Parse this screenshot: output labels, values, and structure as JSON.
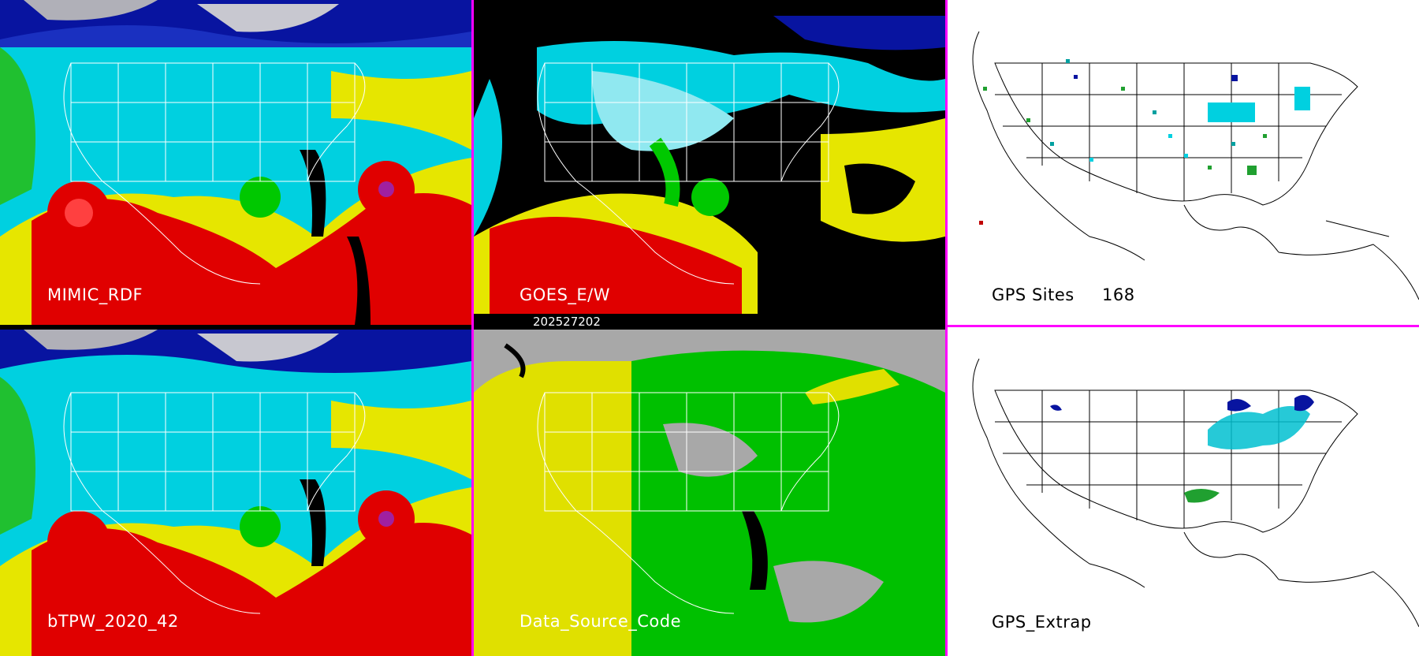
{
  "panels": {
    "mimic": {
      "label": "MIMIC_RDF"
    },
    "goes": {
      "label": "GOES_E/W"
    },
    "gps_sites": {
      "label": "GPS Sites",
      "count": "168"
    },
    "btpw": {
      "label": "bTPW_2020_42"
    },
    "data_source": {
      "label": "Data_Source_Code"
    },
    "gps_extrap": {
      "label": "GPS_Extrap"
    }
  },
  "timestamp": "202527202",
  "colors": {
    "divider": "#ff00ff",
    "tpw_dry": "#00e6f0",
    "tpw_moist": "#00c800",
    "tpw_wet": "#e6e600",
    "tpw_very_wet": "#e00000",
    "tpw_driest": "#0014b4",
    "source_satellite": "#00c000",
    "source_model": "#e0e000",
    "source_none": "#a8a8a8"
  }
}
